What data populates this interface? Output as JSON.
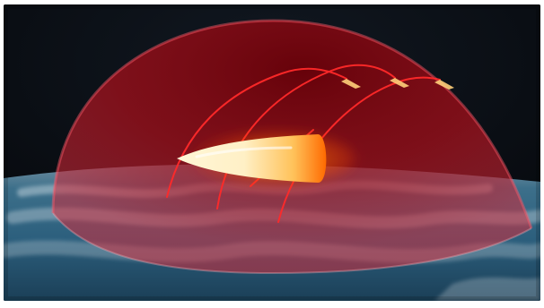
{
  "scene": {
    "kind": "illustration",
    "elements": [
      "space-background",
      "earth-surface",
      "protective-dome",
      "glowing-projectile",
      "missile-trajectories"
    ]
  },
  "colors": {
    "space": "#0b0f14",
    "dome_red": "#c1121f",
    "dome_edge": "#ff5c6a",
    "trajectory": "#ff2a2a",
    "projectile_core": "#fff6d6",
    "projectile_glow": "#ff6a00",
    "earth_blue": "#2c5f7d",
    "earth_clouds": "#e8eef2"
  }
}
